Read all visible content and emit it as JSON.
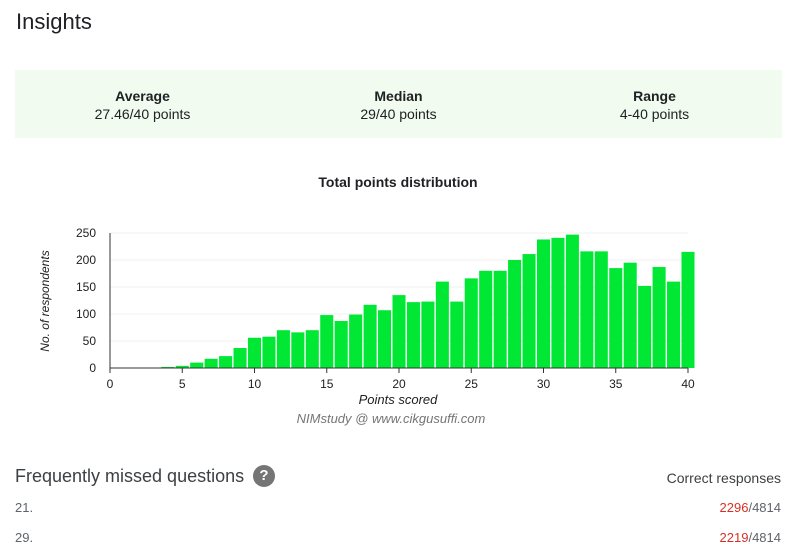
{
  "page": {
    "title": "Insights"
  },
  "stats": [
    {
      "label": "Average",
      "value": "27.46/40 points"
    },
    {
      "label": "Median",
      "value": "29/40 points"
    },
    {
      "label": "Range",
      "value": "4-40 points"
    }
  ],
  "chart_data": {
    "type": "bar",
    "title": "Total points distribution",
    "xlabel": "Points scored",
    "ylabel": "No. of respondents",
    "xlim": [
      0,
      40
    ],
    "ylim": [
      0,
      250
    ],
    "xticks": [
      "0",
      "5",
      "10",
      "15",
      "20",
      "25",
      "30",
      "35",
      "40"
    ],
    "yticks": [
      "0",
      "50",
      "100",
      "150",
      "200",
      "250"
    ],
    "grid": true,
    "legend": "none",
    "bar_color": "#00e834",
    "categories": [
      1,
      2,
      3,
      4,
      5,
      6,
      7,
      8,
      9,
      10,
      11,
      12,
      13,
      14,
      15,
      16,
      17,
      18,
      19,
      20,
      21,
      22,
      23,
      24,
      25,
      26,
      27,
      28,
      29,
      30,
      31,
      32,
      33,
      34,
      35,
      36,
      37,
      38,
      39,
      40
    ],
    "values": [
      0,
      0,
      0,
      2,
      4,
      10,
      17,
      22,
      37,
      56,
      58,
      70,
      66,
      70,
      98,
      87,
      99,
      117,
      107,
      135,
      122,
      123,
      160,
      123,
      166,
      180,
      180,
      200,
      211,
      238,
      241,
      247,
      216,
      216,
      185,
      195,
      152,
      187,
      160,
      215
    ]
  },
  "watermark": "NIMstudy @ www.cikgusuffi.com",
  "missed": {
    "title": "Frequently missed questions",
    "help_icon": "question-mark-icon",
    "correct_header": "Correct responses",
    "rows": [
      {
        "number": "21.",
        "correct": "2296",
        "total": "/4814"
      },
      {
        "number": "29.",
        "correct": "2219",
        "total": "/4814"
      }
    ]
  },
  "colors": {
    "bar": "#00e834",
    "correct_count": "#d93025",
    "card_bg": "#f1fbef"
  }
}
